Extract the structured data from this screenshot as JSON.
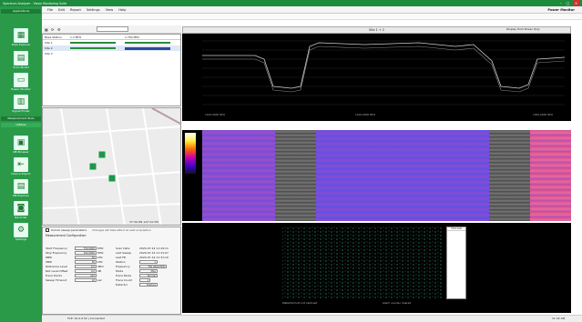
{
  "window": {
    "title": "Spectrum Analyzer - Vision Monitoring Suite",
    "right_title": "Power Monitor"
  },
  "menu": [
    "File",
    "Edit",
    "Report",
    "Settings",
    "View",
    "Help"
  ],
  "sidebar": {
    "section1": "Applications",
    "items1": [
      {
        "label": "Data Explorer",
        "icon": "grid-icon"
      },
      {
        "label": "Scan Model",
        "icon": "document-icon"
      },
      {
        "label": "Power Monitor",
        "icon": "monitor-icon"
      },
      {
        "label": "Signal Finder",
        "icon": "chart-icon"
      }
    ],
    "section2": "Measurement Tools",
    "section2b": "Utilities",
    "items2": [
      {
        "label": "DB Browser",
        "icon": "database-icon"
      },
      {
        "label": "Device Import",
        "icon": "import-icon"
      },
      {
        "label": "DB Explorer",
        "icon": "folder-icon"
      },
      {
        "label": "Recorder",
        "icon": "disk-icon"
      },
      {
        "label": "Settings",
        "icon": "gear-icon"
      }
    ]
  },
  "sites": {
    "col1": "Base Station",
    "col2": "1.2 MHz",
    "col3": "1.750 MHz",
    "rows": [
      "Site 1",
      "Site 2",
      "Site 3"
    ]
  },
  "sweep": {
    "title": "Site 1 + 2",
    "left_label": "1100.0000 MHz",
    "center_label": "1100.0000 MHz",
    "right_label": "1300.0000 MHz",
    "y_ticks": [
      "-10.0",
      "-20.0",
      "-30.0",
      "-40.0",
      "-50.0",
      "-60.0",
      "-70.0",
      "-80.0",
      "-90.0"
    ],
    "checkbox_label": "Display Hold Power Only"
  },
  "map": {
    "coords": "37°26.8N 122°10.5W"
  },
  "config": {
    "checkbox": "Unlock sweep parameters",
    "note": "Changes will take effect at next acquisition",
    "heading": "Measurement Configuration",
    "fields": [
      {
        "label": "Start Frequency",
        "value": "750.0000",
        "unit": "MHz"
      },
      {
        "label": "Stop Frequency",
        "value": "762.0000",
        "unit": "MHz"
      },
      {
        "label": "RBW",
        "value": "30",
        "unit": "kHz"
      },
      {
        "label": "VBW",
        "value": "30",
        "unit": "kHz"
      },
      {
        "label": "Reference Level",
        "value": "0.0",
        "unit": "dBm"
      },
      {
        "label": "Ref. Level Offset",
        "value": "0.0",
        "unit": "dB"
      },
      {
        "label": "Trace Points",
        "value": "401",
        "unit": ""
      },
      {
        "label": "Sweep Timeout",
        "value": "10",
        "unit": "sec"
      }
    ],
    "right_fields": [
      {
        "label": "Scan Date",
        "value": "2020-07-14 11:29:11"
      },
      {
        "label": "Last Sweep",
        "value": "2020-07-14 11:31:07"
      },
      {
        "label": "Last Fill",
        "value": "2020-07-14 11:31:10"
      },
      {
        "label": "Station",
        "value": "1"
      },
      {
        "label": "Frequency",
        "value": "750.0000 MHz"
      },
      {
        "label": "Mode",
        "value": "Max"
      },
      {
        "label": "Trace Mode",
        "value": "Normal"
      },
      {
        "label": "Trace Count",
        "value": "1"
      },
      {
        "label": "Detector",
        "value": "Positive"
      }
    ]
  },
  "dots": {
    "caption_left": "Waterfall hold not captured",
    "caption_right": "Alarm counter cleared",
    "list_title": "Channels"
  },
  "status": {
    "text": "TCP: 10.0.0.52 | Connected",
    "time": "11:32 AM"
  }
}
